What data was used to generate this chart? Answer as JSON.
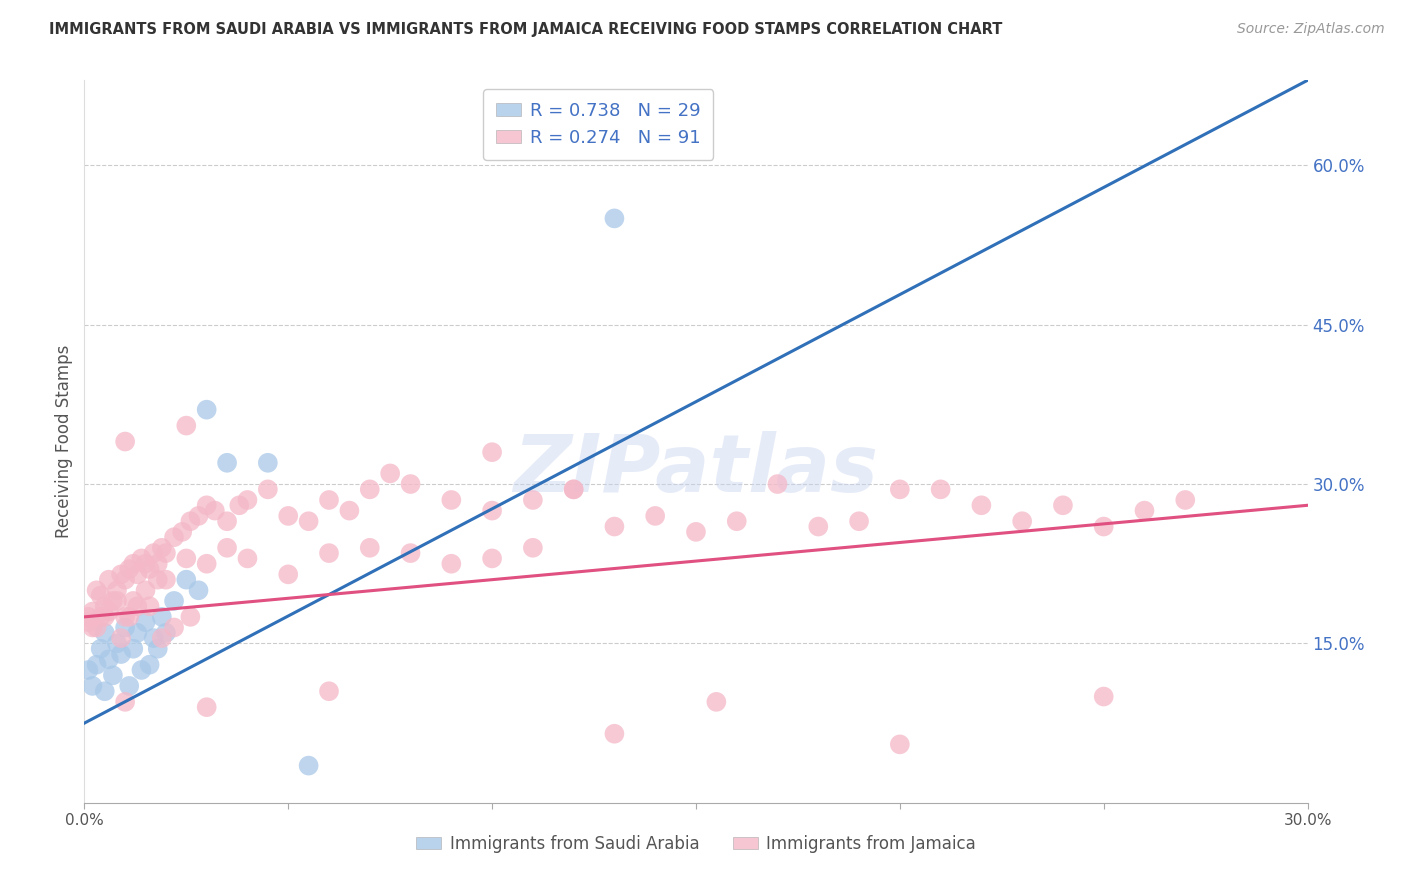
{
  "title": "IMMIGRANTS FROM SAUDI ARABIA VS IMMIGRANTS FROM JAMAICA RECEIVING FOOD STAMPS CORRELATION CHART",
  "source": "Source: ZipAtlas.com",
  "ylabel": "Receiving Food Stamps",
  "xlim": [
    0.0,
    0.3
  ],
  "ylim": [
    0.0,
    0.68
  ],
  "xticks": [
    0.0,
    0.05,
    0.1,
    0.15,
    0.2,
    0.25,
    0.3
  ],
  "xtick_labels": [
    "0.0%",
    "",
    "",
    "",
    "",
    "",
    "30.0%"
  ],
  "yticks_right": [
    0.15,
    0.3,
    0.45,
    0.6
  ],
  "ytick_labels_right": [
    "15.0%",
    "30.0%",
    "45.0%",
    "60.0%"
  ],
  "saudi_R": 0.738,
  "saudi_N": 29,
  "jamaica_R": 0.274,
  "jamaica_N": 91,
  "saudi_color": "#a8c8e8",
  "jamaica_color": "#f4b8c8",
  "saudi_line_color": "#3070b8",
  "jamaica_line_color": "#e05080",
  "watermark": "ZIPatlas",
  "saudi_x": [
    0.001,
    0.002,
    0.003,
    0.004,
    0.005,
    0.005,
    0.006,
    0.007,
    0.008,
    0.009,
    0.01,
    0.011,
    0.012,
    0.013,
    0.014,
    0.015,
    0.016,
    0.017,
    0.018,
    0.019,
    0.02,
    0.022,
    0.025,
    0.028,
    0.03,
    0.035,
    0.045,
    0.055,
    0.13
  ],
  "saudi_y": [
    0.125,
    0.11,
    0.13,
    0.145,
    0.105,
    0.16,
    0.135,
    0.12,
    0.15,
    0.14,
    0.165,
    0.11,
    0.145,
    0.16,
    0.125,
    0.17,
    0.13,
    0.155,
    0.145,
    0.175,
    0.16,
    0.19,
    0.21,
    0.2,
    0.37,
    0.32,
    0.32,
    0.035,
    0.55
  ],
  "jamaica_x": [
    0.001,
    0.002,
    0.003,
    0.004,
    0.005,
    0.006,
    0.007,
    0.008,
    0.009,
    0.01,
    0.011,
    0.012,
    0.013,
    0.014,
    0.015,
    0.016,
    0.017,
    0.018,
    0.019,
    0.02,
    0.022,
    0.024,
    0.026,
    0.028,
    0.03,
    0.032,
    0.035,
    0.038,
    0.04,
    0.045,
    0.05,
    0.055,
    0.06,
    0.065,
    0.07,
    0.075,
    0.08,
    0.09,
    0.1,
    0.11,
    0.12,
    0.13,
    0.14,
    0.15,
    0.16,
    0.17,
    0.18,
    0.19,
    0.2,
    0.21,
    0.22,
    0.23,
    0.24,
    0.25,
    0.26,
    0.27,
    0.003,
    0.005,
    0.008,
    0.01,
    0.012,
    0.015,
    0.018,
    0.02,
    0.025,
    0.03,
    0.035,
    0.04,
    0.05,
    0.06,
    0.07,
    0.08,
    0.09,
    0.1,
    0.11,
    0.12,
    0.001,
    0.002,
    0.004,
    0.006,
    0.009,
    0.011,
    0.013,
    0.016,
    0.019,
    0.022,
    0.026
  ],
  "jamaica_y": [
    0.175,
    0.18,
    0.2,
    0.195,
    0.185,
    0.21,
    0.19,
    0.2,
    0.215,
    0.21,
    0.22,
    0.225,
    0.215,
    0.23,
    0.225,
    0.22,
    0.235,
    0.225,
    0.24,
    0.235,
    0.25,
    0.255,
    0.265,
    0.27,
    0.28,
    0.275,
    0.265,
    0.28,
    0.285,
    0.295,
    0.27,
    0.265,
    0.285,
    0.275,
    0.295,
    0.31,
    0.3,
    0.285,
    0.275,
    0.285,
    0.295,
    0.26,
    0.27,
    0.255,
    0.265,
    0.3,
    0.26,
    0.265,
    0.295,
    0.295,
    0.28,
    0.265,
    0.28,
    0.26,
    0.275,
    0.285,
    0.165,
    0.175,
    0.19,
    0.175,
    0.19,
    0.2,
    0.21,
    0.21,
    0.23,
    0.225,
    0.24,
    0.23,
    0.215,
    0.235,
    0.24,
    0.235,
    0.225,
    0.23,
    0.24,
    0.295,
    0.17,
    0.165,
    0.175,
    0.18,
    0.155,
    0.175,
    0.185,
    0.185,
    0.155,
    0.165,
    0.175
  ],
  "jamaica_extra_x": [
    0.01,
    0.025,
    0.1,
    0.155,
    0.2,
    0.25,
    0.01,
    0.03,
    0.06,
    0.13
  ],
  "jamaica_extra_y": [
    0.34,
    0.355,
    0.33,
    0.095,
    0.055,
    0.1,
    0.095,
    0.09,
    0.105,
    0.065
  ],
  "saudi_trend_x0": 0.0,
  "saudi_trend_y0": 0.075,
  "saudi_trend_x1": 0.3,
  "saudi_trend_y1": 0.68,
  "jamaica_trend_x0": 0.0,
  "jamaica_trend_y0": 0.175,
  "jamaica_trend_x1": 0.3,
  "jamaica_trend_y1": 0.28
}
